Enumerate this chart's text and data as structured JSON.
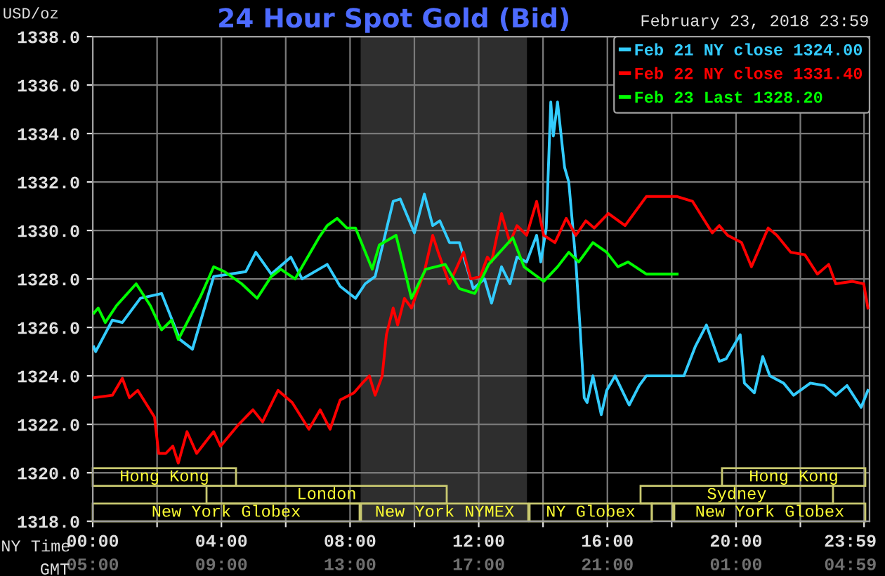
{
  "chart_data": {
    "type": "line",
    "title": "24 Hour Spot Gold (Bid)",
    "subtitle": "February 23, 2018 23:59",
    "ylabel": "USD/oz",
    "xlabel": "NY Time",
    "x2label": "GMT",
    "xlim": [
      0,
      24.15
    ],
    "x2lim": [
      "2018-02-23T05:00",
      "2018-02-24T05:09"
    ],
    "xticks": [
      {
        "value": 0,
        "label": "00:00"
      },
      {
        "value": 2,
        "label": null
      },
      {
        "value": 4,
        "label": "04:00"
      },
      {
        "value": 6,
        "label": null
      },
      {
        "value": 8,
        "label": "08:00"
      },
      {
        "value": 10,
        "label": null
      },
      {
        "value": 12,
        "label": "12:00"
      },
      {
        "value": 14,
        "label": null
      },
      {
        "value": 16,
        "label": "16:00"
      },
      {
        "value": 18,
        "label": null
      },
      {
        "value": 20,
        "label": "20:00"
      },
      {
        "value": 22,
        "label": null
      },
      {
        "value": 23.98,
        "label": "23:59"
      }
    ],
    "x2ticks": [
      {
        "value": "2018-02-23T05:00",
        "label": "05:00"
      },
      {
        "value": "2018-02-23T09:00",
        "label": "09:00"
      },
      {
        "value": "2018-02-23T13:00",
        "label": "13:00"
      },
      {
        "value": "2018-02-23T17:00",
        "label": "17:00"
      },
      {
        "value": "2018-02-23T21:00",
        "label": "21:00"
      },
      {
        "value": "2018-02-24T01:00",
        "label": "01:00"
      },
      {
        "value": "2018-02-24T04:59",
        "label": "04:59"
      }
    ],
    "ylim": [
      1318,
      1338
    ],
    "yticks": [
      {
        "value": 1318,
        "label": "1318.0"
      },
      {
        "value": 1320,
        "label": "1320.0"
      },
      {
        "value": 1322,
        "label": "1322.0"
      },
      {
        "value": 1324,
        "label": "1324.0"
      },
      {
        "value": 1326,
        "label": "1326.0"
      },
      {
        "value": 1328,
        "label": "1328.0"
      },
      {
        "value": 1330,
        "label": "1330.0"
      },
      {
        "value": 1332,
        "label": "1332.0"
      },
      {
        "value": 1334,
        "label": "1334.0"
      },
      {
        "value": 1336,
        "label": "1336.0"
      },
      {
        "value": 1338,
        "label": "1338.0"
      }
    ],
    "grid": true,
    "legend": "top right",
    "bands": [
      {
        "axis": "x",
        "from": 8.33,
        "to": 13.5,
        "label": null,
        "color": "#2e2e2e"
      }
    ],
    "annotations": [
      "Hong Kong",
      "Hong Kong",
      "London",
      "Sydney",
      "New York Globex",
      "New York NYMEX",
      "NY Globex",
      "New York Globex"
    ],
    "series": [
      {
        "name": "Feb 21 NY close 1324.00",
        "color": "#33ccff",
        "x": [
          0.03,
          0.09,
          0.61,
          0.92,
          1.48,
          2.14,
          2.71,
          3.1,
          3.76,
          4.76,
          5.07,
          5.55,
          6.16,
          6.51,
          7.29,
          7.69,
          8.17,
          8.47,
          8.78,
          9.34,
          9.56,
          10.0,
          10.31,
          10.57,
          10.79,
          11.09,
          11.4,
          11.83,
          12.18,
          12.4,
          12.71,
          12.97,
          13.19,
          13.49,
          13.8,
          13.93,
          14.1,
          14.24,
          14.32,
          14.45,
          14.67,
          14.8,
          15.02,
          15.15,
          15.28,
          15.37,
          15.55,
          15.81,
          15.98,
          16.24,
          16.64,
          16.68,
          16.99,
          17.21,
          18.17,
          18.38,
          18.73,
          19.08,
          19.48,
          19.69,
          20.13,
          20.26,
          20.57,
          20.83,
          21.05,
          21.48,
          21.79,
          22.31,
          22.75,
          23.1,
          23.45,
          23.89,
          24.1
        ],
        "values": [
          1325.2,
          1325.0,
          1326.3,
          1326.2,
          1327.2,
          1327.4,
          1325.5,
          1325.1,
          1328.1,
          1328.3,
          1329.1,
          1328.2,
          1328.9,
          1328.0,
          1328.6,
          1327.7,
          1327.2,
          1327.8,
          1328.1,
          1331.2,
          1331.3,
          1329.9,
          1331.5,
          1330.2,
          1330.4,
          1329.5,
          1329.5,
          1327.6,
          1328.0,
          1327.0,
          1328.5,
          1327.8,
          1328.9,
          1328.7,
          1329.8,
          1328.7,
          1330.1,
          1335.3,
          1333.9,
          1335.3,
          1332.6,
          1332.0,
          1328.7,
          1326.0,
          1323.1,
          1322.9,
          1324.0,
          1322.4,
          1323.4,
          1324.0,
          1322.9,
          1322.8,
          1323.6,
          1324.0,
          1324.0,
          1324.0,
          1325.2,
          1326.1,
          1324.6,
          1324.7,
          1325.7,
          1323.7,
          1323.3,
          1324.8,
          1324.0,
          1323.7,
          1323.2,
          1323.7,
          1323.6,
          1323.2,
          1323.6,
          1322.7,
          1323.4
        ]
      },
      {
        "name": "Feb 22 NY close 1331.40",
        "color": "#ff0000",
        "x": [
          0.04,
          0.61,
          0.92,
          1.14,
          1.4,
          1.92,
          2.05,
          2.27,
          2.49,
          2.66,
          2.93,
          3.23,
          3.58,
          3.76,
          3.97,
          4.54,
          4.98,
          5.28,
          5.76,
          6.2,
          6.72,
          7.07,
          7.38,
          7.69,
          8.12,
          8.38,
          8.6,
          8.78,
          9.0,
          9.13,
          9.34,
          9.48,
          9.69,
          9.91,
          10.31,
          10.57,
          10.74,
          11.09,
          11.53,
          11.75,
          12.05,
          12.27,
          12.4,
          12.71,
          12.97,
          13.19,
          13.49,
          13.8,
          14.02,
          14.37,
          14.72,
          15.02,
          15.33,
          15.59,
          16.03,
          16.55,
          17.21,
          18.17,
          18.65,
          19.26,
          19.48,
          19.74,
          20.17,
          20.48,
          21.0,
          21.27,
          21.7,
          22.14,
          22.53,
          22.88,
          23.1,
          23.62,
          23.97,
          24.1
        ],
        "values": [
          1323.1,
          1323.2,
          1323.9,
          1323.1,
          1323.4,
          1322.3,
          1320.8,
          1320.8,
          1321.1,
          1320.4,
          1321.7,
          1320.8,
          1321.4,
          1321.7,
          1321.1,
          1322.0,
          1322.6,
          1322.1,
          1323.4,
          1322.9,
          1321.8,
          1322.6,
          1321.8,
          1323.0,
          1323.3,
          1323.7,
          1324.0,
          1323.2,
          1324.0,
          1325.7,
          1326.8,
          1326.1,
          1327.2,
          1326.8,
          1328.3,
          1329.8,
          1329.1,
          1327.8,
          1329.1,
          1328.0,
          1328.1,
          1328.9,
          1328.7,
          1330.7,
          1329.5,
          1330.2,
          1329.8,
          1331.2,
          1329.8,
          1329.5,
          1330.5,
          1329.8,
          1330.4,
          1330.1,
          1330.7,
          1330.2,
          1331.4,
          1331.4,
          1331.2,
          1329.9,
          1330.2,
          1329.8,
          1329.5,
          1328.5,
          1330.1,
          1329.8,
          1329.1,
          1329.0,
          1328.2,
          1328.6,
          1327.8,
          1327.9,
          1327.8,
          1326.8
        ]
      },
      {
        "name": "Feb 23 Last 1328.20",
        "color": "#00ff00",
        "x": [
          0.04,
          0.17,
          0.39,
          0.74,
          1.35,
          1.79,
          2.14,
          2.45,
          2.66,
          3.36,
          3.76,
          4.1,
          4.63,
          5.11,
          5.55,
          5.85,
          6.29,
          7.03,
          7.29,
          7.6,
          7.9,
          8.17,
          8.69,
          8.91,
          9.43,
          9.91,
          10.35,
          10.96,
          11.4,
          11.88,
          12.31,
          13.06,
          13.41,
          14.02,
          14.45,
          14.8,
          15.11,
          15.55,
          15.98,
          16.33,
          16.64,
          17.21,
          18.17
        ],
        "values": [
          1326.6,
          1326.8,
          1326.2,
          1326.9,
          1327.8,
          1326.9,
          1325.9,
          1326.3,
          1325.5,
          1327.3,
          1328.5,
          1328.3,
          1327.8,
          1327.2,
          1328.1,
          1328.4,
          1328.0,
          1329.7,
          1330.2,
          1330.5,
          1330.1,
          1330.1,
          1328.4,
          1329.4,
          1329.8,
          1327.2,
          1328.4,
          1328.6,
          1327.6,
          1327.4,
          1328.6,
          1329.7,
          1328.5,
          1327.9,
          1328.5,
          1329.1,
          1328.7,
          1329.5,
          1329.1,
          1328.5,
          1328.7,
          1328.2,
          1328.2
        ]
      }
    ]
  }
}
